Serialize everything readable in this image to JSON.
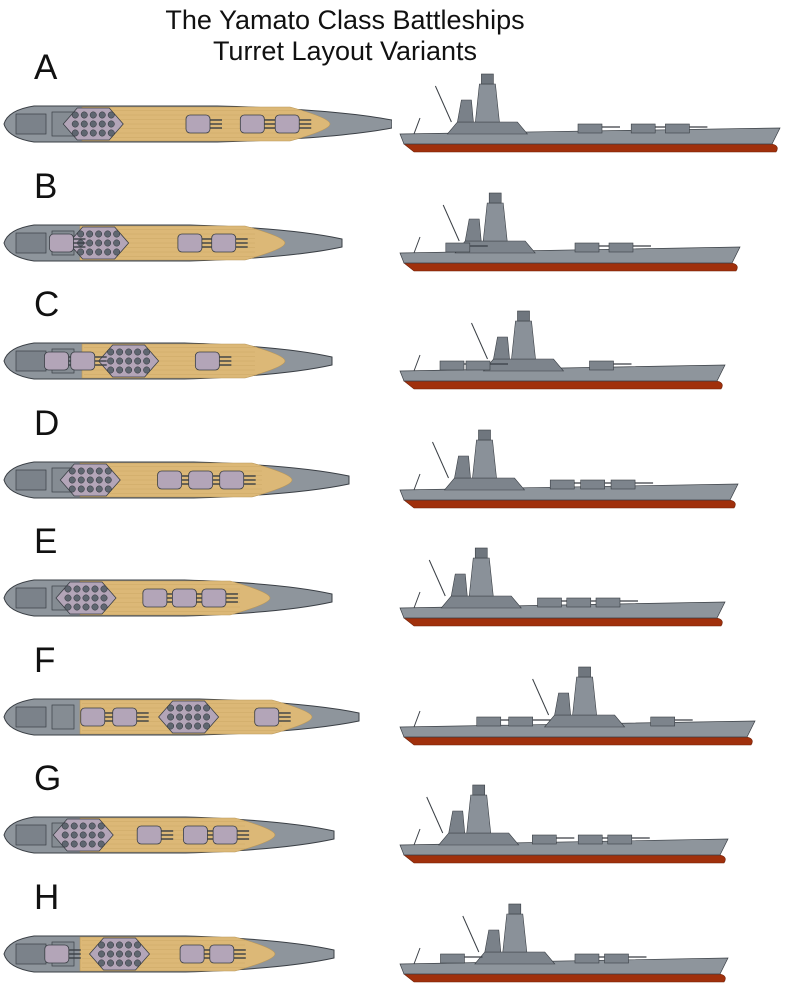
{
  "title": {
    "line1": "The Yamato Class Battleships",
    "line2": "Turret Layout Variants"
  },
  "colors": {
    "hull_gray": "#8e959c",
    "deck_wood": "#dcb877",
    "turret_lilac": "#b3a5b8",
    "superstructure_dark": "#5f6670",
    "hull_red": "#a0300c",
    "outline": "#3a3f45"
  },
  "variants": [
    {
      "label": "A",
      "hull_len": 388,
      "deck_start": 82,
      "deck_end": 330,
      "ss_pos": 0.23,
      "turrets": [
        0.5,
        0.64,
        0.73
      ],
      "profile_len": 380
    },
    {
      "label": "B",
      "hull_len": 338,
      "deck_start": 80,
      "deck_end": 285,
      "ss_pos": 0.28,
      "turrets": [
        0.17,
        0.55,
        0.65
      ],
      "profile_len": 340
    },
    {
      "label": "C",
      "hull_len": 328,
      "deck_start": 82,
      "deck_end": 285,
      "ss_pos": 0.38,
      "turrets": [
        0.16,
        0.24,
        0.62
      ],
      "profile_len": 325
    },
    {
      "label": "D",
      "hull_len": 345,
      "deck_start": 80,
      "deck_end": 292,
      "ss_pos": 0.25,
      "turrets": [
        0.48,
        0.57,
        0.66
      ],
      "profile_len": 338
    },
    {
      "label": "E",
      "hull_len": 328,
      "deck_start": 80,
      "deck_end": 270,
      "ss_pos": 0.25,
      "turrets": [
        0.46,
        0.55,
        0.64
      ],
      "profile_len": 325
    },
    {
      "label": "F",
      "hull_len": 355,
      "deck_start": 80,
      "deck_end": 312,
      "ss_pos": 0.52,
      "turrets": [
        0.25,
        0.34,
        0.74
      ],
      "profile_len": 355
    },
    {
      "label": "G",
      "hull_len": 330,
      "deck_start": 80,
      "deck_end": 275,
      "ss_pos": 0.24,
      "turrets": [
        0.44,
        0.58,
        0.67
      ],
      "profile_len": 328
    },
    {
      "label": "H",
      "hull_len": 330,
      "deck_start": 80,
      "deck_end": 275,
      "ss_pos": 0.35,
      "turrets": [
        0.16,
        0.57,
        0.66
      ],
      "profile_len": 328
    }
  ]
}
